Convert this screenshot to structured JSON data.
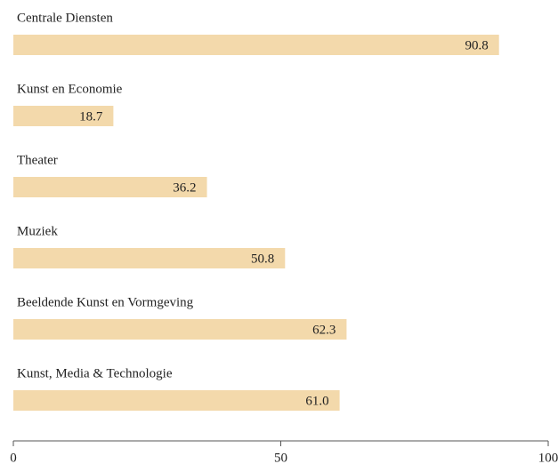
{
  "chart_data": {
    "type": "barh",
    "categories": [
      "Centrale Diensten",
      "Kunst en Economie",
      "Theater",
      "Muziek",
      "Beeldende Kunst en Vormgeving",
      "Kunst, Media & Technologie"
    ],
    "values": [
      90.8,
      18.7,
      36.2,
      50.8,
      62.3,
      61.0
    ],
    "value_labels": [
      "90.8",
      "18.7",
      "36.2",
      "50.8",
      "62.3",
      "61.0"
    ],
    "color": "#f3d9ab",
    "xlim": [
      0,
      100
    ],
    "xticks": [
      0,
      50,
      100
    ]
  }
}
